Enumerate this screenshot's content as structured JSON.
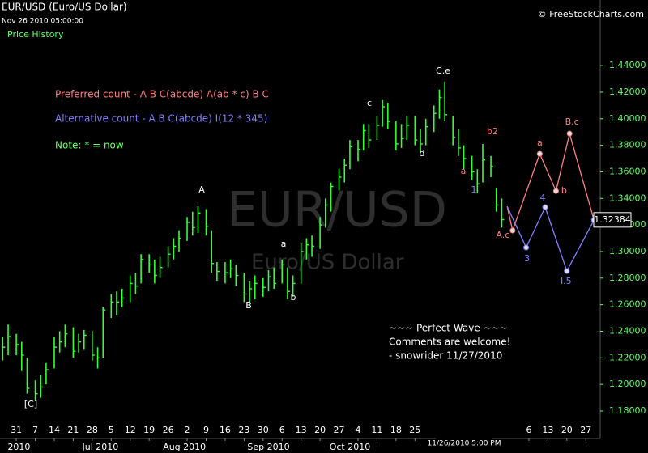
{
  "chart_data": {
    "type": "ohlc",
    "title": "EUR/USD (Euro/US Dollar)",
    "subtitle": "Nov 26 2010 05:00:00",
    "panel_label": "Price History",
    "source": "© FreeStockCharts.com",
    "watermark": "EUR/USD",
    "watermark_subtitle": "Euro/US Dollar",
    "notes": [
      {
        "text": "Preferred count -  A B C(abcde) A(ab * c) B C",
        "color": "#ff7f7f"
      },
      {
        "text": "Alternative count -  A B C(abcde) I(12 * 345)",
        "color": "#8080ff"
      },
      {
        "text": "Note:  * = now",
        "color": "#66ff66"
      }
    ],
    "comment": [
      "~~~ Perfect Wave ~~~",
      "Comments are welcome!",
      "- snowrider  11/27/2010"
    ],
    "crosshair_label": "11/26/2010 5:00 PM",
    "last_price": 1.32384,
    "color": "#33ff33",
    "x": [
      "2010-05-26",
      "2010-05-28",
      "2010-05-31",
      "2010-06-02",
      "2010-06-04",
      "2010-06-07",
      "2010-06-09",
      "2010-06-11",
      "2010-06-14",
      "2010-06-16",
      "2010-06-18",
      "2010-06-21",
      "2010-06-23",
      "2010-06-25",
      "2010-06-28",
      "2010-06-30",
      "2010-07-02",
      "2010-07-05",
      "2010-07-07",
      "2010-07-09",
      "2010-07-12",
      "2010-07-14",
      "2010-07-16",
      "2010-07-19",
      "2010-07-21",
      "2010-07-23",
      "2010-07-26",
      "2010-07-28",
      "2010-07-30",
      "2010-08-02",
      "2010-08-04",
      "2010-08-06",
      "2010-08-09",
      "2010-08-11",
      "2010-08-13",
      "2010-08-16",
      "2010-08-18",
      "2010-08-20",
      "2010-08-23",
      "2010-08-25",
      "2010-08-27",
      "2010-08-30",
      "2010-09-01",
      "2010-09-03",
      "2010-09-06",
      "2010-09-08",
      "2010-09-10",
      "2010-09-13",
      "2010-09-15",
      "2010-09-17",
      "2010-09-20",
      "2010-09-22",
      "2010-09-24",
      "2010-09-27",
      "2010-09-29",
      "2010-10-01",
      "2010-10-04",
      "2010-10-06",
      "2010-10-08",
      "2010-10-11",
      "2010-10-13",
      "2010-10-15",
      "2010-10-18",
      "2010-10-20",
      "2010-10-22",
      "2010-10-25",
      "2010-10-27",
      "2010-10-29",
      "2010-11-01",
      "2010-11-03",
      "2010-11-05",
      "2010-11-08",
      "2010-11-10",
      "2010-11-12",
      "2010-11-15",
      "2010-11-17",
      "2010-11-19",
      "2010-11-22",
      "2010-11-24",
      "2010-11-26"
    ],
    "high": [
      1.236,
      1.245,
      1.238,
      1.232,
      1.22,
      1.203,
      1.207,
      1.216,
      1.236,
      1.24,
      1.245,
      1.243,
      1.238,
      1.241,
      1.24,
      1.228,
      1.258,
      1.268,
      1.27,
      1.272,
      1.282,
      1.284,
      1.298,
      1.298,
      1.294,
      1.296,
      1.304,
      1.31,
      1.316,
      1.326,
      1.33,
      1.334,
      1.332,
      1.316,
      1.292,
      1.292,
      1.294,
      1.29,
      1.284,
      1.278,
      1.282,
      1.28,
      1.286,
      1.288,
      1.294,
      1.288,
      1.282,
      1.306,
      1.31,
      1.312,
      1.326,
      1.34,
      1.352,
      1.362,
      1.37,
      1.384,
      1.384,
      1.396,
      1.396,
      1.402,
      1.414,
      1.412,
      1.398,
      1.396,
      1.402,
      1.402,
      1.392,
      1.4,
      1.41,
      1.422,
      1.428,
      1.402,
      1.392,
      1.38,
      1.372,
      1.362,
      1.381,
      1.372,
      1.348,
      1.34
    ],
    "low": [
      1.218,
      1.222,
      1.222,
      1.21,
      1.193,
      1.188,
      1.19,
      1.2,
      1.212,
      1.224,
      1.228,
      1.22,
      1.224,
      1.226,
      1.218,
      1.212,
      1.22,
      1.25,
      1.252,
      1.258,
      1.262,
      1.268,
      1.276,
      1.284,
      1.276,
      1.28,
      1.288,
      1.294,
      1.3,
      1.308,
      1.312,
      1.314,
      1.312,
      1.284,
      1.278,
      1.276,
      1.28,
      1.274,
      1.262,
      1.262,
      1.264,
      1.266,
      1.27,
      1.272,
      1.276,
      1.264,
      1.266,
      1.276,
      1.294,
      1.296,
      1.302,
      1.318,
      1.33,
      1.346,
      1.352,
      1.362,
      1.368,
      1.376,
      1.378,
      1.384,
      1.394,
      1.392,
      1.376,
      1.378,
      1.384,
      1.38,
      1.374,
      1.38,
      1.39,
      1.4,
      1.398,
      1.38,
      1.372,
      1.362,
      1.354,
      1.344,
      1.352,
      1.356,
      1.33,
      1.318
    ],
    "close": [
      1.228,
      1.236,
      1.23,
      1.222,
      1.197,
      1.193,
      1.198,
      1.211,
      1.228,
      1.232,
      1.238,
      1.225,
      1.232,
      1.237,
      1.222,
      1.22,
      1.256,
      1.262,
      1.262,
      1.265,
      1.276,
      1.274,
      1.294,
      1.29,
      1.282,
      1.288,
      1.298,
      1.304,
      1.31,
      1.322,
      1.318,
      1.329,
      1.319,
      1.291,
      1.285,
      1.284,
      1.287,
      1.282,
      1.268,
      1.272,
      1.276,
      1.273,
      1.281,
      1.276,
      1.29,
      1.27,
      1.276,
      1.3,
      1.305,
      1.304,
      1.32,
      1.335,
      1.349,
      1.356,
      1.365,
      1.379,
      1.377,
      1.391,
      1.384,
      1.395,
      1.409,
      1.398,
      1.381,
      1.385,
      1.395,
      1.384,
      1.381,
      1.394,
      1.404,
      1.416,
      1.403,
      1.386,
      1.378,
      1.37,
      1.36,
      1.351,
      1.369,
      1.364,
      1.335,
      1.324
    ],
    "xlim": [
      "2010-05-25",
      "2011-01-01"
    ],
    "ylim": [
      1.1605,
      1.476
    ],
    "yticks": [
      {
        "value": 1.18,
        "label": "1.18000"
      },
      {
        "value": 1.2,
        "label": "1.20000"
      },
      {
        "value": 1.22,
        "label": "1.22000"
      },
      {
        "value": 1.24,
        "label": "1.24000"
      },
      {
        "value": 1.26,
        "label": "1.26000"
      },
      {
        "value": 1.28,
        "label": "1.28000"
      },
      {
        "value": 1.3,
        "label": "1.30000"
      },
      {
        "value": 1.32,
        "label": "1.32000"
      },
      {
        "value": 1.34,
        "label": "1.34000"
      },
      {
        "value": 1.36,
        "label": "1.36000"
      },
      {
        "value": 1.38,
        "label": "1.38000"
      },
      {
        "value": 1.4,
        "label": "1.40000"
      },
      {
        "value": 1.42,
        "label": "1.42000"
      },
      {
        "value": 1.44,
        "label": "1.44000"
      }
    ],
    "xticks": [
      {
        "value": "2010-05-31",
        "label": "31"
      },
      {
        "value": "2010-06-07",
        "label": "7"
      },
      {
        "value": "2010-06-14",
        "label": "14"
      },
      {
        "value": "2010-06-21",
        "label": "21"
      },
      {
        "value": "2010-06-28",
        "label": "28"
      },
      {
        "value": "2010-07-05",
        "label": "5"
      },
      {
        "value": "2010-07-12",
        "label": "12"
      },
      {
        "value": "2010-07-19",
        "label": "19"
      },
      {
        "value": "2010-07-26",
        "label": "26"
      },
      {
        "value": "2010-08-02",
        "label": "2"
      },
      {
        "value": "2010-08-09",
        "label": "9"
      },
      {
        "value": "2010-08-16",
        "label": "16"
      },
      {
        "value": "2010-08-23",
        "label": "23"
      },
      {
        "value": "2010-08-30",
        "label": "30"
      },
      {
        "value": "2010-09-06",
        "label": "6"
      },
      {
        "value": "2010-09-13",
        "label": "13"
      },
      {
        "value": "2010-09-20",
        "label": "20"
      },
      {
        "value": "2010-09-27",
        "label": "27"
      },
      {
        "value": "2010-10-04",
        "label": "4"
      },
      {
        "value": "2010-10-11",
        "label": "11"
      },
      {
        "value": "2010-10-18",
        "label": "18"
      },
      {
        "value": "2010-10-25",
        "label": "25"
      },
      {
        "value": "2010-12-06",
        "label": "6"
      },
      {
        "value": "2010-12-13",
        "label": "13"
      },
      {
        "value": "2010-12-20",
        "label": "20"
      },
      {
        "value": "2010-12-27",
        "label": "27"
      }
    ],
    "month_ticks": [
      {
        "value": "2010-06-01",
        "label": "2010"
      },
      {
        "value": "2010-07-01",
        "label": "Jul 2010"
      },
      {
        "value": "2010-08-01",
        "label": "Aug 2010"
      },
      {
        "value": "2010-09-01",
        "label": "Sep 2010"
      },
      {
        "value": "2010-10-01",
        "label": "Oct 2010"
      }
    ],
    "wave_labels": [
      {
        "text": "[C]",
        "color": "#ffffff"
      },
      {
        "text": "A",
        "color": "#ffffff"
      },
      {
        "text": "B",
        "color": "#ffffff"
      },
      {
        "text": "a",
        "color": "#ffffff"
      },
      {
        "text": "b",
        "color": "#ffffff"
      },
      {
        "text": "c",
        "color": "#ffffff"
      },
      {
        "text": "d",
        "color": "#ffffff"
      },
      {
        "text": "C.e",
        "color": "#ffffff"
      },
      {
        "text": "a",
        "color": "#ff7f7f"
      },
      {
        "text": "b2",
        "color": "#ff7f7f"
      },
      {
        "text": "1",
        "color": "#8080ff"
      }
    ],
    "projections": [
      {
        "color": "#ff7f7f",
        "x": [
          "2010-11-28",
          "2010-11-30",
          "2010-12-10",
          "2010-12-16",
          "2010-12-21",
          "2010-12-30"
        ],
        "values": [
          1.334,
          1.3158,
          1.3736,
          1.3456,
          1.3888,
          1.3237
        ],
        "labels": [
          null,
          "A.c",
          "a",
          "b",
          "B.c",
          null
        ]
      },
      {
        "color": "#8080ff",
        "x": [
          "2010-11-28",
          "2010-12-05",
          "2010-12-12",
          "2010-12-20",
          "2010-12-30"
        ],
        "values": [
          1.334,
          1.303,
          1.3334,
          1.2853,
          1.3237
        ],
        "labels": [
          null,
          "3",
          "4",
          "I.5",
          null
        ]
      }
    ]
  }
}
